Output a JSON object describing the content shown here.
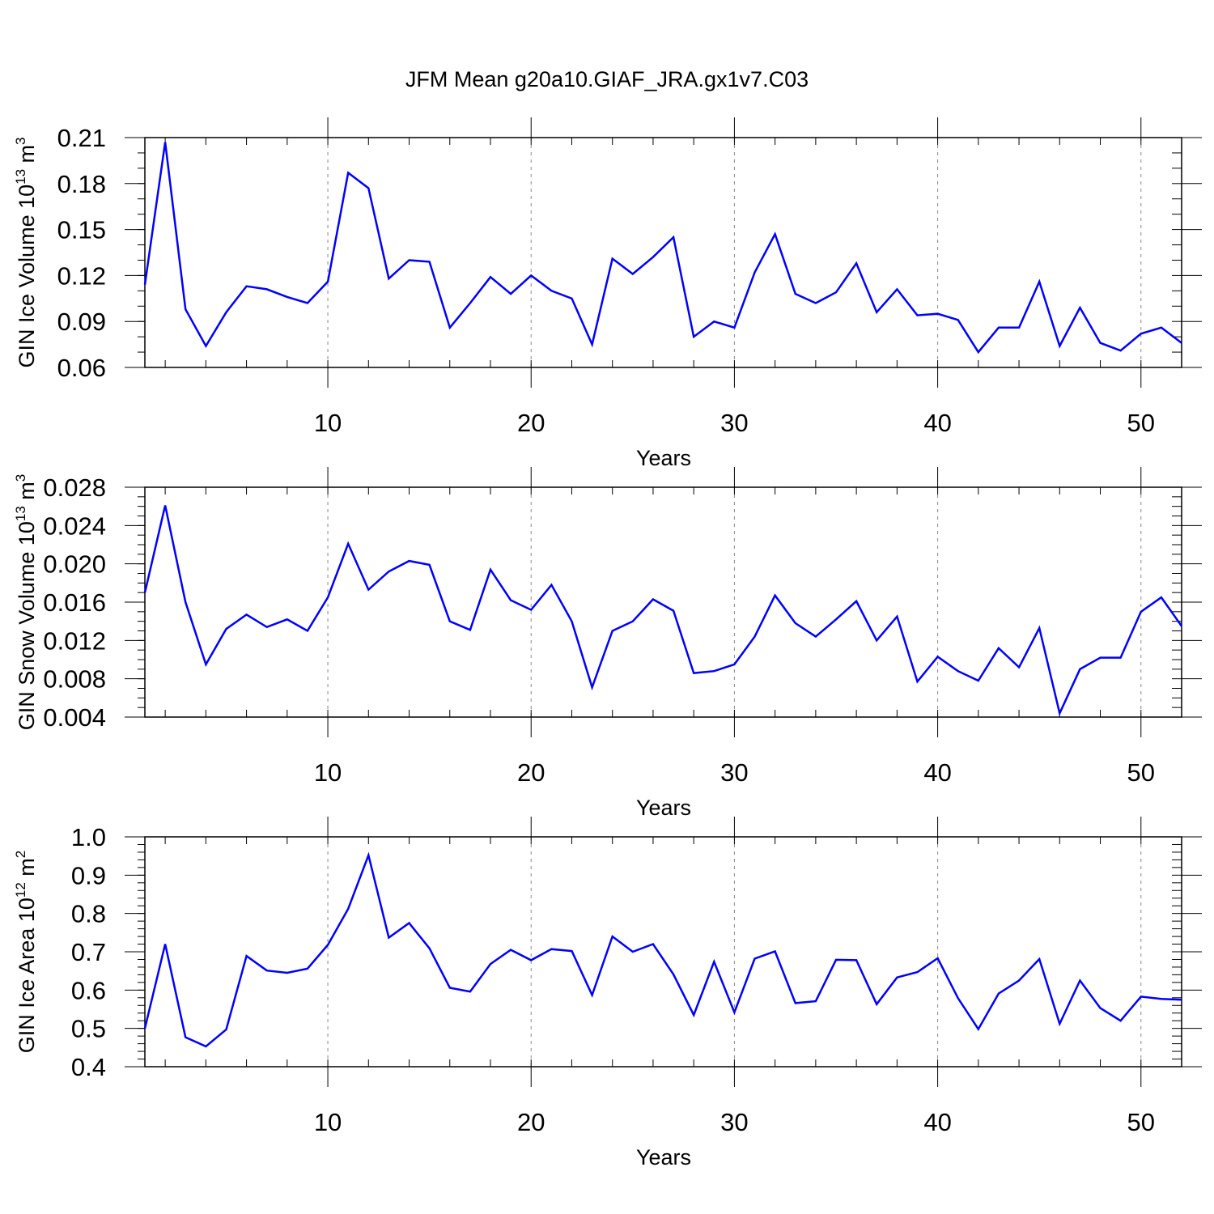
{
  "title": "JFM Mean g20a10.GIAF_JRA.gx1v7.C03",
  "chart_data": [
    {
      "type": "line",
      "ylabel": "GIN Ice Volume 10",
      "ylabel_exp": "13",
      "ylabel_unit": " m",
      "ylabel_unit_exp": "3",
      "xlabel": "Years",
      "xlim": [
        1,
        52
      ],
      "ylim": [
        0.06,
        0.21
      ],
      "yticks": [
        "0.06",
        "0.09",
        "0.12",
        "0.15",
        "0.18",
        "0.21"
      ],
      "yminor_step": 0.01,
      "xticks": [
        "10",
        "20",
        "30",
        "40",
        "50"
      ],
      "line_color": "#0000ff",
      "series": [
        {
          "name": "GIN Ice Volume",
          "x": [
            1,
            2,
            3,
            4,
            5,
            6,
            7,
            8,
            9,
            10,
            11,
            12,
            13,
            14,
            15,
            16,
            17,
            18,
            19,
            20,
            21,
            22,
            23,
            24,
            25,
            26,
            27,
            28,
            29,
            30,
            31,
            32,
            33,
            34,
            35,
            36,
            37,
            38,
            39,
            40,
            41,
            42,
            43,
            44,
            45,
            46,
            47,
            48,
            49,
            50,
            51,
            52
          ],
          "values": [
            0.114,
            0.207,
            0.098,
            0.074,
            0.096,
            0.113,
            0.111,
            0.106,
            0.102,
            0.116,
            0.187,
            0.177,
            0.118,
            0.13,
            0.129,
            0.086,
            0.102,
            0.119,
            0.108,
            0.12,
            0.11,
            0.105,
            0.075,
            0.131,
            0.121,
            0.132,
            0.145,
            0.08,
            0.09,
            0.086,
            0.122,
            0.147,
            0.108,
            0.102,
            0.109,
            0.128,
            0.096,
            0.111,
            0.094,
            0.095,
            0.091,
            0.07,
            0.086,
            0.086,
            0.116,
            0.074,
            0.099,
            0.076,
            0.071,
            0.082,
            0.086,
            0.076
          ]
        }
      ]
    },
    {
      "type": "line",
      "ylabel": "GIN Snow Volume 10",
      "ylabel_exp": "13",
      "ylabel_unit": " m",
      "ylabel_unit_exp": "3",
      "xlabel": "Years",
      "xlim": [
        1,
        52
      ],
      "ylim": [
        0.004,
        0.028
      ],
      "yticks": [
        "0.004",
        "0.008",
        "0.012",
        "0.016",
        "0.020",
        "0.024",
        "0.028"
      ],
      "yminor_step": 0.001,
      "xticks": [
        "10",
        "20",
        "30",
        "40",
        "50"
      ],
      "line_color": "#0000ff",
      "series": [
        {
          "name": "GIN Snow Volume",
          "x": [
            1,
            2,
            3,
            4,
            5,
            6,
            7,
            8,
            9,
            10,
            11,
            12,
            13,
            14,
            15,
            16,
            17,
            18,
            19,
            20,
            21,
            22,
            23,
            24,
            25,
            26,
            27,
            28,
            29,
            30,
            31,
            32,
            33,
            34,
            35,
            36,
            37,
            38,
            39,
            40,
            41,
            42,
            43,
            44,
            45,
            46,
            47,
            48,
            49,
            50,
            51,
            52
          ],
          "values": [
            0.017,
            0.0261,
            0.016,
            0.0095,
            0.0132,
            0.0147,
            0.0134,
            0.0142,
            0.013,
            0.0165,
            0.0221,
            0.0173,
            0.0192,
            0.0203,
            0.0199,
            0.014,
            0.0131,
            0.0194,
            0.0162,
            0.0152,
            0.0178,
            0.014,
            0.0071,
            0.013,
            0.014,
            0.0163,
            0.0151,
            0.0086,
            0.0088,
            0.0095,
            0.0124,
            0.0167,
            0.0138,
            0.0124,
            0.0142,
            0.0161,
            0.012,
            0.0145,
            0.0077,
            0.0103,
            0.0088,
            0.0078,
            0.0112,
            0.0092,
            0.0133,
            0.0044,
            0.009,
            0.0102,
            0.0102,
            0.015,
            0.0165,
            0.0135
          ]
        }
      ]
    },
    {
      "type": "line",
      "ylabel": "GIN Ice Area 10",
      "ylabel_exp": "12",
      "ylabel_unit": " m",
      "ylabel_unit_exp": "2",
      "xlabel": "Years",
      "xlim": [
        1,
        52
      ],
      "ylim": [
        0.4,
        1.0
      ],
      "yticks": [
        "0.4",
        "0.5",
        "0.6",
        "0.7",
        "0.8",
        "0.9",
        "1.0"
      ],
      "yminor_step": 0.02,
      "xticks": [
        "10",
        "20",
        "30",
        "40",
        "50"
      ],
      "line_color": "#0000ff",
      "series": [
        {
          "name": "GIN Ice Area",
          "x": [
            1,
            2,
            3,
            4,
            5,
            6,
            7,
            8,
            9,
            10,
            11,
            12,
            13,
            14,
            15,
            16,
            17,
            18,
            19,
            20,
            21,
            22,
            23,
            24,
            25,
            26,
            27,
            28,
            29,
            30,
            31,
            32,
            33,
            34,
            35,
            36,
            37,
            38,
            39,
            40,
            41,
            42,
            43,
            44,
            45,
            46,
            47,
            48,
            49,
            50,
            51,
            52
          ],
          "values": [
            0.5,
            0.72,
            0.477,
            0.453,
            0.497,
            0.689,
            0.651,
            0.645,
            0.656,
            0.718,
            0.812,
            0.952,
            0.737,
            0.775,
            0.709,
            0.606,
            0.596,
            0.668,
            0.705,
            0.678,
            0.707,
            0.702,
            0.587,
            0.74,
            0.7,
            0.72,
            0.641,
            0.535,
            0.674,
            0.542,
            0.682,
            0.701,
            0.566,
            0.571,
            0.679,
            0.678,
            0.563,
            0.633,
            0.647,
            0.683,
            0.579,
            0.498,
            0.591,
            0.625,
            0.681,
            0.512,
            0.625,
            0.553,
            0.52,
            0.583,
            0.577,
            0.575
          ]
        }
      ]
    }
  ]
}
